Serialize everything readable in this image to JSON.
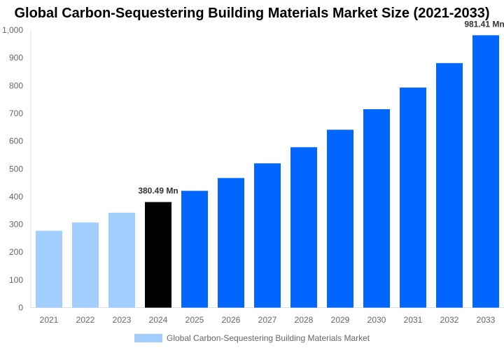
{
  "chart_data": {
    "type": "bar",
    "title": "Global Carbon-Sequestering Building Materials Market Size (2021-2033)",
    "categories": [
      "2021",
      "2022",
      "2023",
      "2024",
      "2025",
      "2026",
      "2027",
      "2028",
      "2029",
      "2030",
      "2031",
      "2032",
      "2033"
    ],
    "series": [
      {
        "name": "Global Carbon-Sequestering Building Materials Market",
        "values": [
          277,
          307,
          342,
          380.49,
          421,
          467,
          520,
          578,
          641,
          715,
          793,
          881,
          981.41
        ]
      }
    ],
    "colors": [
      "#a3cfff",
      "#a3cfff",
      "#a3cfff",
      "#000000",
      "#0066ff",
      "#0066ff",
      "#0066ff",
      "#0066ff",
      "#0066ff",
      "#0066ff",
      "#0066ff",
      "#0066ff",
      "#0066ff"
    ],
    "data_labels": {
      "3": "380.49 Mn",
      "12": "981.41 Mn"
    },
    "ylim": [
      0,
      1000
    ],
    "yticks": [
      "0",
      "100",
      "200",
      "300",
      "400",
      "500",
      "600",
      "700",
      "800",
      "900",
      "1,000"
    ],
    "grid": false,
    "legend_position": "bottom"
  }
}
